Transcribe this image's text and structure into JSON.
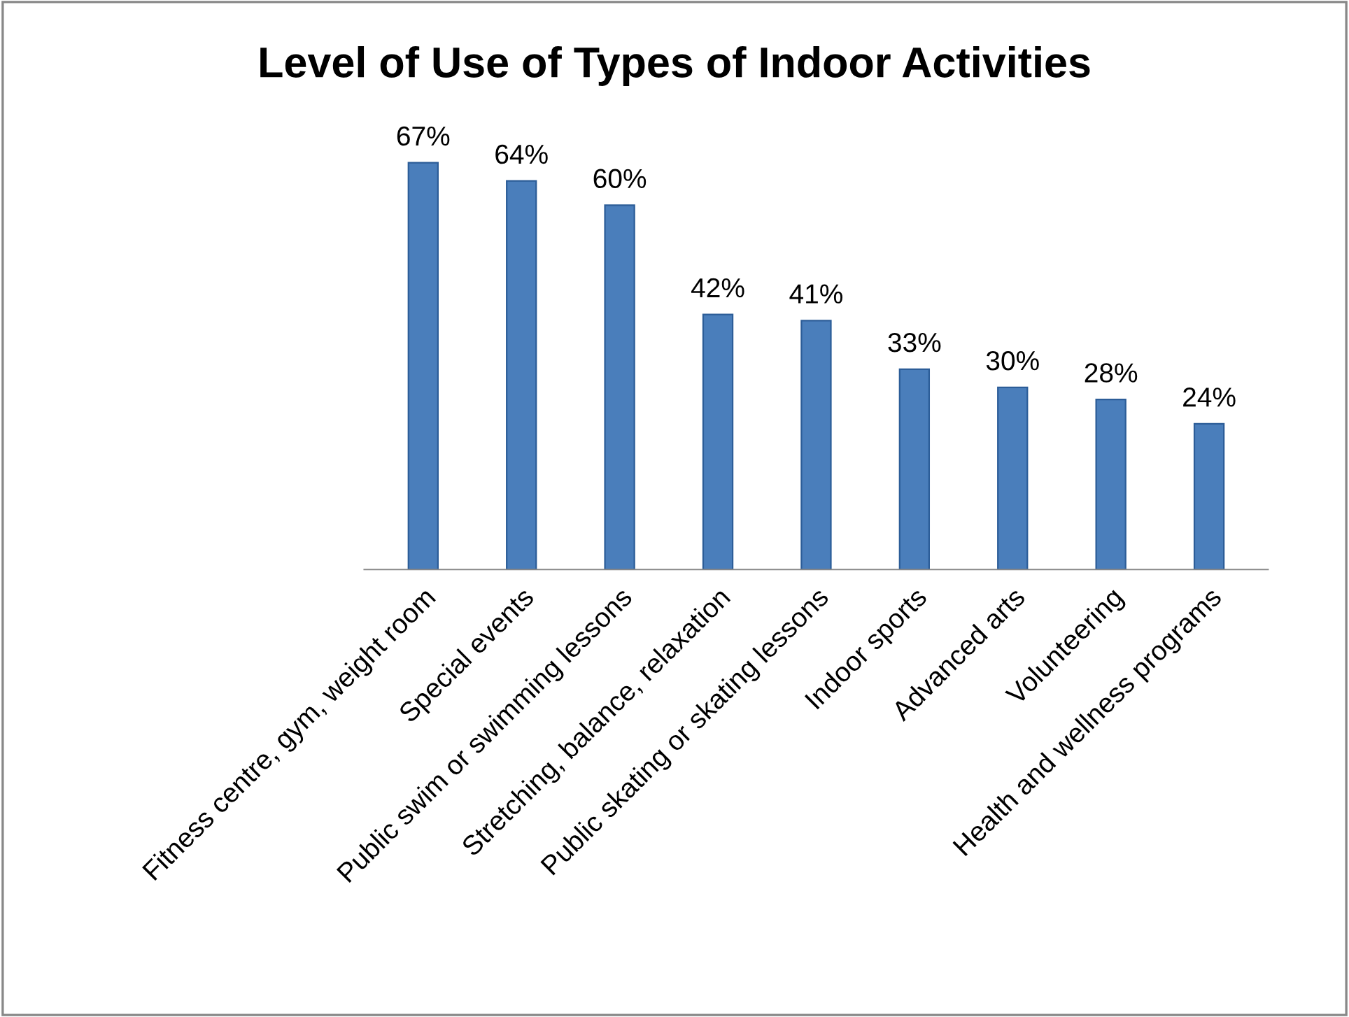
{
  "chart_data": {
    "type": "bar",
    "title": "Level of Use of Types of Indoor Activities",
    "categories": [
      "Fitness centre, gym, weight room",
      "Special events",
      "Public swim or swimming lessons",
      "Stretching, balance, relaxation",
      "Public skating or skating lessons",
      "Indoor sports",
      "Advanced arts",
      "Volunteering",
      "Health and wellness programs"
    ],
    "values": [
      67,
      64,
      60,
      42,
      41,
      33,
      30,
      28,
      24
    ],
    "value_labels": [
      "67%",
      "64%",
      "60%",
      "42%",
      "41%",
      "33%",
      "30%",
      "28%",
      "24%"
    ],
    "color": "#4a7ebb",
    "grid": false,
    "legend": false
  }
}
